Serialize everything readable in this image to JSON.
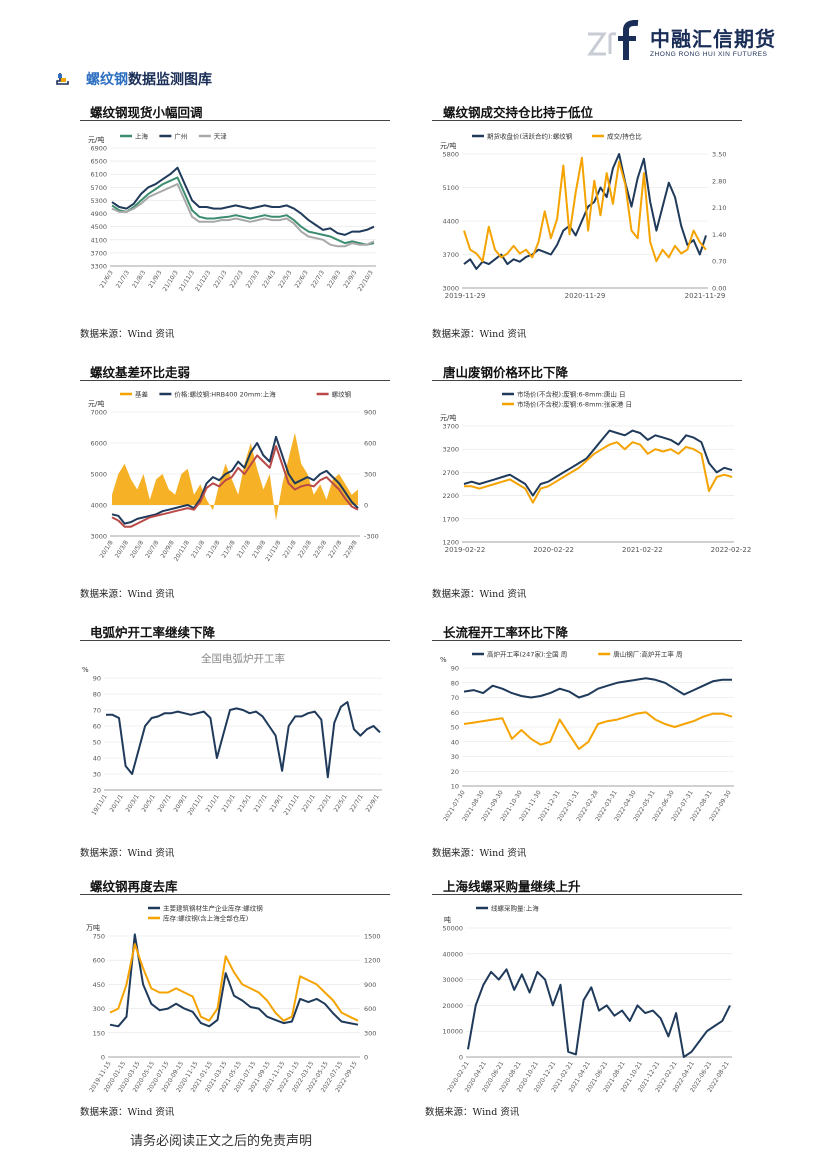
{
  "header": {
    "logo_cn": "中融汇信期货",
    "logo_en": "ZHONG RONG HUI XIN FUTURES"
  },
  "section": {
    "title_highlight": "螺纹钢",
    "title_rest": "数据监测图库"
  },
  "panels": [
    {
      "title": "螺纹钢现货小幅回调",
      "source": "数据来源：Wind 资讯"
    },
    {
      "title": "螺纹钢成交持仓比持于低位",
      "source": "数据来源：Wind 资讯"
    },
    {
      "title": "螺纹基差环比走弱",
      "source": "数据来源：Wind 资讯"
    },
    {
      "title": "唐山废钢价格环比下降",
      "source": "数据来源：Wind 资讯"
    },
    {
      "title": "电弧炉开工率继续下降",
      "source": "数据来源：Wind 资讯"
    },
    {
      "title": "长流程开工率环比下降",
      "source": "数据来源：Wind 资讯"
    },
    {
      "title": "螺纹钢再度去库",
      "source": "数据来源：Wind 资讯"
    },
    {
      "title": "上海线螺采购量继续上升",
      "source": "数据来源：Wind 资讯"
    }
  ],
  "footer": {
    "note": "请务必阅读正文之后的免责声明"
  },
  "colors": {
    "navy": "#1f3a5a",
    "orange": "#f5a300",
    "green": "#3c8c6e",
    "gray": "#a8a8a8",
    "red": "#b94a48",
    "brand": "#1a2e57",
    "accent": "#2e6fc0"
  },
  "chart_data": [
    {
      "type": "line",
      "unit": "元/吨",
      "legend": [
        "上海",
        "广州",
        "天津"
      ],
      "ylim": [
        3300,
        6900
      ],
      "yticks": [
        "6900",
        "6500",
        "6100",
        "5700",
        "5300",
        "4900",
        "4500",
        "4100",
        "3700",
        "3300"
      ],
      "xticks": [
        "21/6/3",
        "21/7/3",
        "21/8/3",
        "21/9/3",
        "21/10/3",
        "21/11/3",
        "21/12/3",
        "22/1/3",
        "22/2/3",
        "22/3/3",
        "22/4/3",
        "22/5/3",
        "22/6/3",
        "22/7/3",
        "22/8/3",
        "22/9/3",
        "22/10/3"
      ],
      "series": [
        {
          "name": "上海",
          "color": "green",
          "values": [
            5150,
            5000,
            4950,
            5100,
            5300,
            5500,
            5650,
            5800,
            5900,
            6000,
            5500,
            5000,
            4800,
            4750,
            4750,
            4780,
            4800,
            4850,
            4800,
            4750,
            4800,
            4850,
            4800,
            4800,
            4850,
            4700,
            4500,
            4350,
            4300,
            4250,
            4200,
            4100,
            4000,
            4050,
            4000,
            3950,
            4000
          ]
        },
        {
          "name": "广州",
          "color": "navy",
          "values": [
            5250,
            5100,
            5050,
            5200,
            5500,
            5700,
            5800,
            5950,
            6100,
            6300,
            5800,
            5300,
            5100,
            5100,
            5050,
            5050,
            5100,
            5150,
            5100,
            5050,
            5100,
            5150,
            5100,
            5100,
            5150,
            5050,
            4900,
            4700,
            4550,
            4400,
            4450,
            4300,
            4250,
            4350,
            4350,
            4400,
            4500
          ]
        },
        {
          "name": "天津",
          "color": "gray",
          "values": [
            5050,
            4950,
            4950,
            5050,
            5200,
            5400,
            5500,
            5600,
            5700,
            5800,
            5300,
            4800,
            4650,
            4650,
            4650,
            4700,
            4700,
            4750,
            4700,
            4650,
            4700,
            4750,
            4700,
            4700,
            4750,
            4600,
            4350,
            4200,
            4150,
            4100,
            3950,
            3900,
            3900,
            4000,
            3950,
            3950,
            4050
          ]
        }
      ]
    },
    {
      "type": "line",
      "unit": "元/吨",
      "legend": [
        "期货收盘价(活跃合约):螺纹钢",
        "成交/持仓比"
      ],
      "ylim": [
        3000,
        5800
      ],
      "y2lim": [
        0,
        3.5
      ],
      "yticks": [
        "5800",
        "5100",
        "4400",
        "3700",
        "3000"
      ],
      "y2ticks": [
        "3.50",
        "2.80",
        "2.10",
        "1.40",
        "0.70",
        "0.00"
      ],
      "xticks": [
        "2019-11-29",
        "2020-11-29",
        "2021-11-29"
      ],
      "series": [
        {
          "name": "期货收盘价(活跃合约):螺纹钢",
          "color": "navy",
          "values": [
            3500,
            3600,
            3400,
            3550,
            3500,
            3600,
            3700,
            3500,
            3600,
            3550,
            3650,
            3700,
            3800,
            3750,
            3700,
            3900,
            4200,
            4300,
            4100,
            4400,
            4700,
            4800,
            5100,
            4900,
            5500,
            5800,
            5200,
            4700,
            5300,
            5700,
            4800,
            4200,
            4700,
            5200,
            4900,
            4300,
            3900,
            4000,
            3700,
            4100
          ]
        },
        {
          "name": "成交/持仓比",
          "color": "orange",
          "values": [
            1.5,
            1.0,
            0.9,
            0.7,
            1.6,
            1.0,
            0.8,
            0.9,
            1.1,
            0.9,
            1.0,
            0.8,
            1.2,
            2.0,
            1.3,
            1.8,
            3.2,
            1.4,
            2.5,
            3.4,
            1.5,
            2.8,
            1.9,
            3.0,
            2.2,
            3.3,
            2.7,
            1.5,
            1.3,
            3.0,
            1.2,
            0.7,
            1.0,
            0.8,
            1.1,
            0.9,
            1.0,
            1.5,
            1.2,
            1.0
          ]
        }
      ]
    },
    {
      "type": "line",
      "unit": "元/吨",
      "legend": [
        "基差",
        "价格:螺纹钢:HRB400 20mm:上海",
        "螺纹钢"
      ],
      "ylim": [
        3000,
        7000
      ],
      "y2lim": [
        -300,
        900
      ],
      "yticks": [
        "7000",
        "6000",
        "5000",
        "4000",
        "3000"
      ],
      "y2ticks": [
        "900",
        "600",
        "300",
        "0",
        "-300"
      ],
      "xticks": [
        "20/1/8",
        "20/3/8",
        "20/5/8",
        "20/7/8",
        "20/9/8",
        "20/11/8",
        "21/1/8",
        "21/3/8",
        "21/5/8",
        "21/7/8",
        "21/9/8",
        "21/11/8",
        "22/1/8",
        "22/3/8",
        "22/5/8",
        "22/7/8",
        "22/9/8"
      ],
      "series": [
        {
          "name": "基差",
          "color": "orange",
          "values": [
            100,
            300,
            400,
            250,
            150,
            300,
            50,
            250,
            300,
            150,
            100,
            300,
            350,
            100,
            200,
            50,
            -50,
            200,
            400,
            250,
            100,
            400,
            600,
            350,
            150,
            300,
            -150,
            200,
            450,
            700,
            400,
            300,
            100,
            200,
            50,
            250,
            300,
            200,
            100,
            150
          ]
        },
        {
          "name": "价格:螺纹钢:HRB400 20mm:上海",
          "color": "navy",
          "values": [
            3700,
            3650,
            3400,
            3450,
            3550,
            3600,
            3650,
            3700,
            3800,
            3850,
            3900,
            3950,
            4000,
            3900,
            4200,
            4700,
            4900,
            4800,
            5000,
            5100,
            5400,
            5200,
            5700,
            6000,
            5600,
            5400,
            6200,
            5600,
            5000,
            4700,
            4800,
            4900,
            4800,
            5000,
            5100,
            4900,
            4700,
            4400,
            4100,
            3900
          ]
        },
        {
          "name": "螺纹钢",
          "color": "red",
          "values": [
            3600,
            3500,
            3300,
            3300,
            3400,
            3500,
            3600,
            3650,
            3700,
            3750,
            3800,
            3850,
            3900,
            3850,
            4100,
            4550,
            4700,
            4600,
            4800,
            4900,
            5200,
            5000,
            5300,
            5600,
            5400,
            5200,
            5900,
            5300,
            4700,
            4500,
            4600,
            4650,
            4600,
            4800,
            4900,
            4700,
            4500,
            4200,
            3950,
            3850
          ]
        }
      ]
    },
    {
      "type": "line",
      "unit": "元/吨",
      "legend": [
        "市场价(不含税):废钢:6-8mm:唐山 日",
        "市场价(不含税):废钢:6-8mm:张家港 日"
      ],
      "ylim": [
        1200,
        3700
      ],
      "yticks": [
        "3700",
        "3200",
        "2700",
        "2200",
        "1700",
        "1200"
      ],
      "xticks": [
        "2019-02-22",
        "2020-02-22",
        "2021-02-22",
        "2022-02-22"
      ],
      "series": [
        {
          "name": "市场价(不含税):废钢:6-8mm:唐山 日",
          "color": "navy",
          "values": [
            2450,
            2500,
            2450,
            2500,
            2550,
            2600,
            2650,
            2550,
            2450,
            2200,
            2450,
            2500,
            2600,
            2700,
            2800,
            2900,
            3000,
            3200,
            3400,
            3600,
            3550,
            3500,
            3600,
            3550,
            3400,
            3500,
            3450,
            3400,
            3300,
            3500,
            3450,
            3350,
            2900,
            2700,
            2800,
            2750
          ]
        },
        {
          "name": "市场价(不含税):废钢:6-8mm:张家港 日",
          "color": "orange",
          "values": [
            2400,
            2400,
            2350,
            2400,
            2450,
            2500,
            2550,
            2450,
            2350,
            2050,
            2350,
            2400,
            2500,
            2600,
            2700,
            2800,
            2950,
            3100,
            3200,
            3300,
            3350,
            3200,
            3350,
            3300,
            3100,
            3200,
            3150,
            3200,
            3100,
            3250,
            3200,
            3100,
            2300,
            2600,
            2650,
            2600
          ]
        }
      ]
    },
    {
      "type": "line",
      "title": "全国电弧炉开工率",
      "unit": "%",
      "ylim": [
        20,
        90
      ],
      "yticks": [
        "90",
        "80",
        "70",
        "60",
        "50",
        "40",
        "30",
        "20"
      ],
      "xticks": [
        "19/11/1",
        "20/1/1",
        "20/3/1",
        "20/5/1",
        "20/7/1",
        "20/9/1",
        "20/11/1",
        "21/1/1",
        "21/3/1",
        "21/5/1",
        "21/7/1",
        "21/9/1",
        "21/11/1",
        "22/1/1",
        "22/3/1",
        "22/5/1",
        "22/7/1",
        "22/9/1"
      ],
      "series": [
        {
          "name": "全国电弧炉开工率",
          "color": "navy",
          "values": [
            67,
            67,
            65,
            35,
            30,
            45,
            60,
            65,
            66,
            68,
            68,
            69,
            68,
            67,
            68,
            69,
            65,
            40,
            55,
            70,
            71,
            70,
            68,
            69,
            66,
            60,
            54,
            32,
            60,
            66,
            66,
            68,
            69,
            64,
            28,
            62,
            72,
            75,
            58,
            54,
            58,
            60,
            56
          ]
        }
      ]
    },
    {
      "type": "line",
      "unit": "%",
      "legend": [
        "高炉开工率(247家):全国 周",
        "唐山钢厂:高炉开工率 周"
      ],
      "ylim": [
        10,
        90
      ],
      "yticks": [
        "90",
        "80",
        "70",
        "60",
        "50",
        "40",
        "30",
        "20",
        "10"
      ],
      "xticks": [
        "2021-07-30",
        "2021-08-30",
        "2021-09-30",
        "2021-10-30",
        "2021-11-30",
        "2021-12-31",
        "2022-01-31",
        "2022-02-28",
        "2022-03-31",
        "2022-04-30",
        "2022-05-31",
        "2022-06-30",
        "2022-07-31",
        "2022-08-31",
        "2022-09-30"
      ],
      "series": [
        {
          "name": "高炉开工率(247家):全国 周",
          "color": "navy",
          "values": [
            74,
            75,
            73,
            78,
            76,
            73,
            71,
            70,
            71,
            73,
            76,
            74,
            70,
            72,
            76,
            78,
            80,
            81,
            82,
            83,
            82,
            80,
            76,
            72,
            75,
            78,
            81,
            82,
            82
          ]
        },
        {
          "name": "唐山钢厂:高炉开工率 周",
          "color": "orange",
          "values": [
            52,
            53,
            54,
            55,
            56,
            42,
            48,
            42,
            38,
            40,
            55,
            45,
            35,
            40,
            52,
            54,
            55,
            57,
            59,
            60,
            55,
            52,
            50,
            52,
            54,
            57,
            59,
            59,
            57
          ]
        }
      ]
    },
    {
      "type": "line",
      "unit": "万吨",
      "legend": [
        "主要建筑钢材生产企业库存:螺纹钢",
        "库存:螺纹钢(含上海全部仓库)"
      ],
      "ylim": [
        0,
        750
      ],
      "y2lim": [
        0,
        1500
      ],
      "yticks": [
        "750",
        "600",
        "450",
        "300",
        "150",
        "0"
      ],
      "y2ticks": [
        "1500",
        "1200",
        "900",
        "600",
        "300",
        "0"
      ],
      "xticks": [
        "2019-11-15",
        "2020-01-15",
        "2020-03-15",
        "2020-05-15",
        "2020-07-15",
        "2020-09-15",
        "2020-11-15",
        "2021-01-15",
        "2021-03-15",
        "2021-05-15",
        "2021-07-15",
        "2021-09-15",
        "2021-11-15",
        "2022-01-15",
        "2022-03-15",
        "2022-05-15",
        "2022-07-15",
        "2022-09-15"
      ],
      "series": [
        {
          "name": "主要建筑钢材生产企业库存:螺纹钢",
          "color": "navy",
          "values": [
            200,
            190,
            250,
            760,
            450,
            330,
            290,
            300,
            330,
            300,
            280,
            210,
            190,
            230,
            520,
            380,
            350,
            310,
            300,
            250,
            230,
            210,
            220,
            360,
            340,
            360,
            330,
            270,
            220,
            210,
            200
          ]
        },
        {
          "name": "库存:螺纹钢(含上海全部仓库)",
          "color": "orange",
          "values": [
            550,
            600,
            900,
            1400,
            1100,
            850,
            800,
            800,
            850,
            800,
            750,
            500,
            450,
            600,
            1250,
            1050,
            900,
            850,
            800,
            700,
            550,
            450,
            500,
            1000,
            950,
            900,
            800,
            700,
            550,
            500,
            450
          ]
        }
      ]
    },
    {
      "type": "line",
      "unit": "吨",
      "legend": [
        "线螺采购量:上海"
      ],
      "ylim": [
        0,
        50000
      ],
      "yticks": [
        "50000",
        "40000",
        "30000",
        "20000",
        "10000",
        "0"
      ],
      "xticks": [
        "2020-02-21",
        "2020-04-21",
        "2020-06-21",
        "2020-08-21",
        "2020-10-21",
        "2020-12-21",
        "2021-02-21",
        "2021-04-21",
        "2021-06-21",
        "2021-08-21",
        "2021-10-21",
        "2021-12-21",
        "2022-02-21",
        "2022-04-21",
        "2022-06-21",
        "2022-08-21"
      ],
      "series": [
        {
          "name": "线螺采购量:上海",
          "color": "navy",
          "values": [
            3000,
            20000,
            28000,
            33000,
            30000,
            34000,
            26000,
            32000,
            25000,
            33000,
            30000,
            20000,
            28000,
            2000,
            1000,
            22000,
            27000,
            18000,
            20000,
            16000,
            18000,
            14000,
            20000,
            17000,
            18000,
            15000,
            8000,
            17000,
            0,
            2000,
            6000,
            10000,
            12000,
            14000,
            20000
          ]
        }
      ]
    }
  ]
}
